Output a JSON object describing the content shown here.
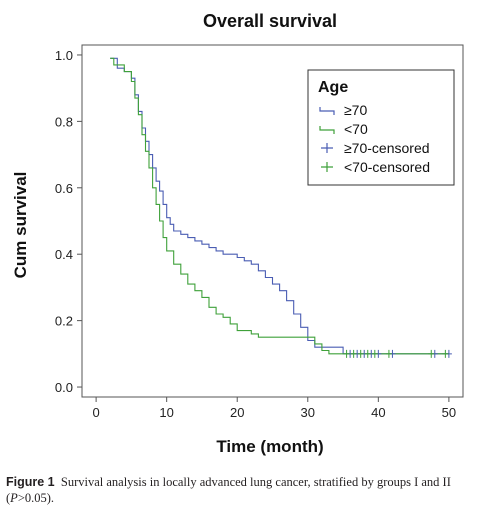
{
  "chart_data": {
    "type": "line",
    "step": true,
    "title": "Overall survival",
    "xlabel": "Time (month)",
    "ylabel": "Cum survival",
    "xlim": [
      -2,
      52
    ],
    "ylim": [
      -0.03,
      1.03
    ],
    "xticks": [
      0,
      10,
      20,
      30,
      40,
      50
    ],
    "yticks": [
      0.0,
      0.2,
      0.4,
      0.6,
      0.8,
      1.0
    ],
    "ytick_labels": [
      "0.0",
      "0.2",
      "0.4",
      "0.6",
      "0.8",
      "1.0"
    ],
    "grid": false,
    "legend": {
      "title": "Age",
      "placement": "top-right",
      "entries": [
        "≥70",
        "<70",
        "≥70-censored",
        "<70-censored"
      ]
    },
    "series": [
      {
        "name": "≥70",
        "color": "#4a5db3",
        "x": [
          2,
          3,
          4,
          5,
          5.5,
          6,
          6.5,
          7,
          7.5,
          8,
          8.5,
          9,
          9.5,
          10,
          10.5,
          11,
          12,
          13,
          14,
          15,
          16,
          17,
          18,
          19,
          20,
          21,
          22,
          23,
          24,
          25,
          26,
          27,
          28,
          29,
          30,
          31,
          32,
          33,
          35,
          50
        ],
        "y": [
          0.99,
          0.96,
          0.95,
          0.93,
          0.88,
          0.83,
          0.78,
          0.74,
          0.7,
          0.66,
          0.62,
          0.59,
          0.55,
          0.51,
          0.49,
          0.47,
          0.46,
          0.45,
          0.44,
          0.43,
          0.42,
          0.41,
          0.4,
          0.4,
          0.39,
          0.38,
          0.37,
          0.35,
          0.33,
          0.31,
          0.29,
          0.26,
          0.22,
          0.18,
          0.14,
          0.12,
          0.12,
          0.12,
          0.1,
          0.1
        ]
      },
      {
        "name": "<70",
        "color": "#3fa13a",
        "x": [
          2,
          2.5,
          4,
          5,
          5.5,
          6,
          6.5,
          7,
          7.5,
          8,
          8.5,
          9,
          9.5,
          10,
          11,
          12,
          13,
          14,
          15,
          16,
          17,
          18,
          19,
          20,
          21,
          22,
          23,
          25,
          28,
          30,
          31,
          32,
          33,
          35,
          50
        ],
        "y": [
          0.99,
          0.97,
          0.95,
          0.92,
          0.87,
          0.82,
          0.76,
          0.71,
          0.66,
          0.6,
          0.55,
          0.5,
          0.45,
          0.41,
          0.37,
          0.34,
          0.31,
          0.29,
          0.27,
          0.24,
          0.22,
          0.21,
          0.19,
          0.17,
          0.17,
          0.16,
          0.15,
          0.15,
          0.15,
          0.15,
          0.13,
          0.11,
          0.1,
          0.1,
          0.1
        ]
      }
    ],
    "censored": [
      {
        "name": "≥70-censored",
        "color": "#4a5db3",
        "x": [
          36,
          37,
          38,
          39,
          40,
          42,
          48,
          50
        ],
        "y": 0.1
      },
      {
        "name": "<70-censored",
        "color": "#3fa13a",
        "x": [
          35.5,
          36.5,
          37.5,
          38.5,
          39.5,
          41.5,
          47.5,
          49.5
        ],
        "y": 0.1
      }
    ]
  },
  "caption": {
    "label": "Figure 1",
    "text": "Survival analysis in locally advanced lung cancer, stratified by groups I and II (",
    "p_symbol": "P",
    "p_text": ">0.05)."
  }
}
